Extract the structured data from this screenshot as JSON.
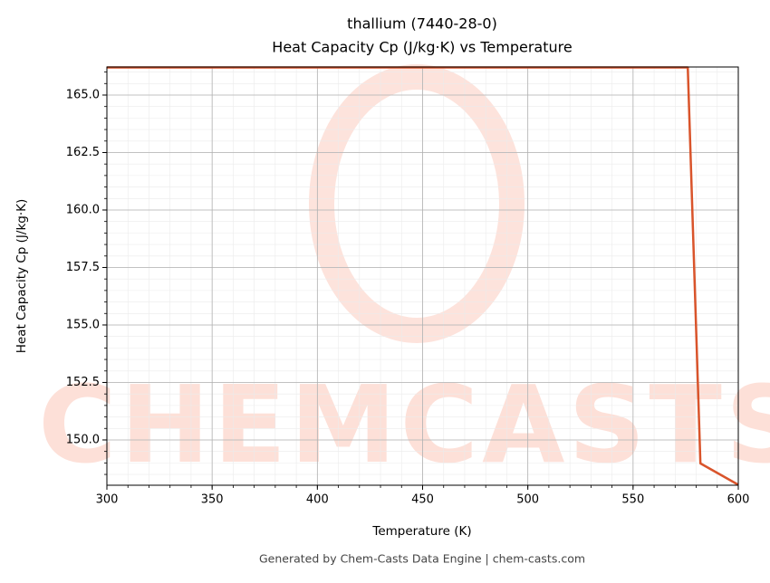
{
  "chart_data": {
    "type": "line",
    "title": "thallium (7440-28-0)",
    "subtitle": "Heat Capacity Cp (J/kg·K) vs Temperature",
    "x_label": "Temperature (K)",
    "y_label": "Heat Capacity Cp (J/kg·K)",
    "footer": "Generated by Chem-Casts Data Engine | chem-casts.com",
    "watermark": "CHEMCASTS",
    "x": [
      300,
      576,
      582,
      600
    ],
    "series": [
      {
        "name": "Cp",
        "color": "#d9542b",
        "values": [
          166.2,
          166.2,
          148.98,
          148.05
        ]
      }
    ],
    "xlim": [
      300,
      600
    ],
    "ylim": [
      148.03,
      166.22
    ],
    "xticks": [
      300,
      350,
      400,
      450,
      500,
      550,
      600
    ],
    "yticks": [
      {
        "value": 150,
        "label": "150.0"
      },
      {
        "value": 152.5,
        "label": "152.5"
      },
      {
        "value": 155,
        "label": "155.0"
      },
      {
        "value": 157.5,
        "label": "157.5"
      },
      {
        "value": 160,
        "label": "160.0"
      },
      {
        "value": 162.5,
        "label": "162.5"
      },
      {
        "value": 165,
        "label": "165.0"
      }
    ],
    "grid": true,
    "minor_grid": true
  }
}
